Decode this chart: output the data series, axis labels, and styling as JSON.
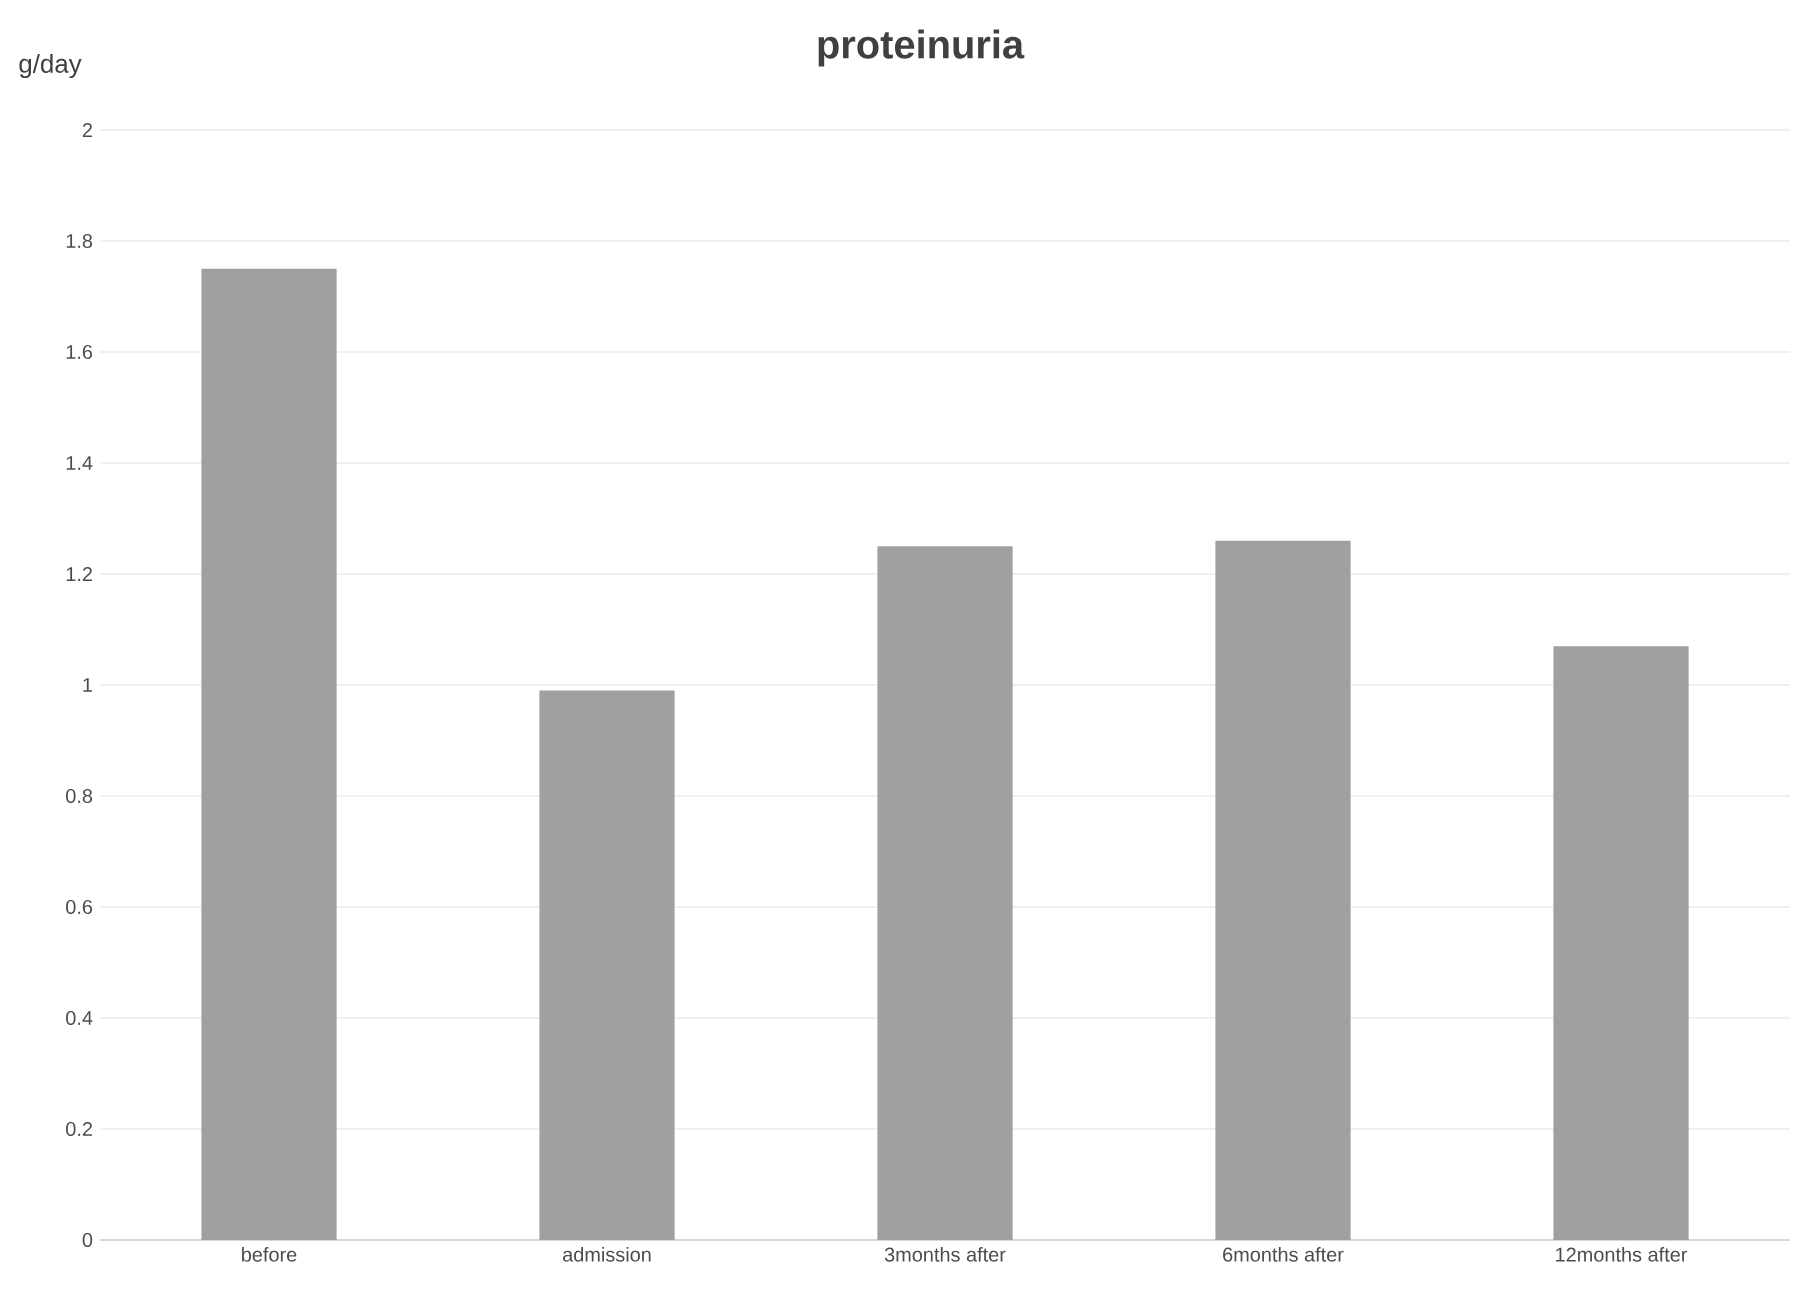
{
  "chart_data": {
    "type": "bar",
    "title": "proteinuria",
    "ylabel": "g/day",
    "categories": [
      "before",
      "admission",
      "3months after",
      "6months after",
      "12months after"
    ],
    "values": [
      1.75,
      0.99,
      1.25,
      1.26,
      1.07
    ],
    "color": "#a0a0a2",
    "ylim": [
      0,
      2
    ],
    "yticks": [
      0,
      0.2,
      0.4,
      0.6,
      0.8,
      1,
      1.2,
      1.4,
      1.6,
      1.8,
      2
    ],
    "grid": "y"
  }
}
